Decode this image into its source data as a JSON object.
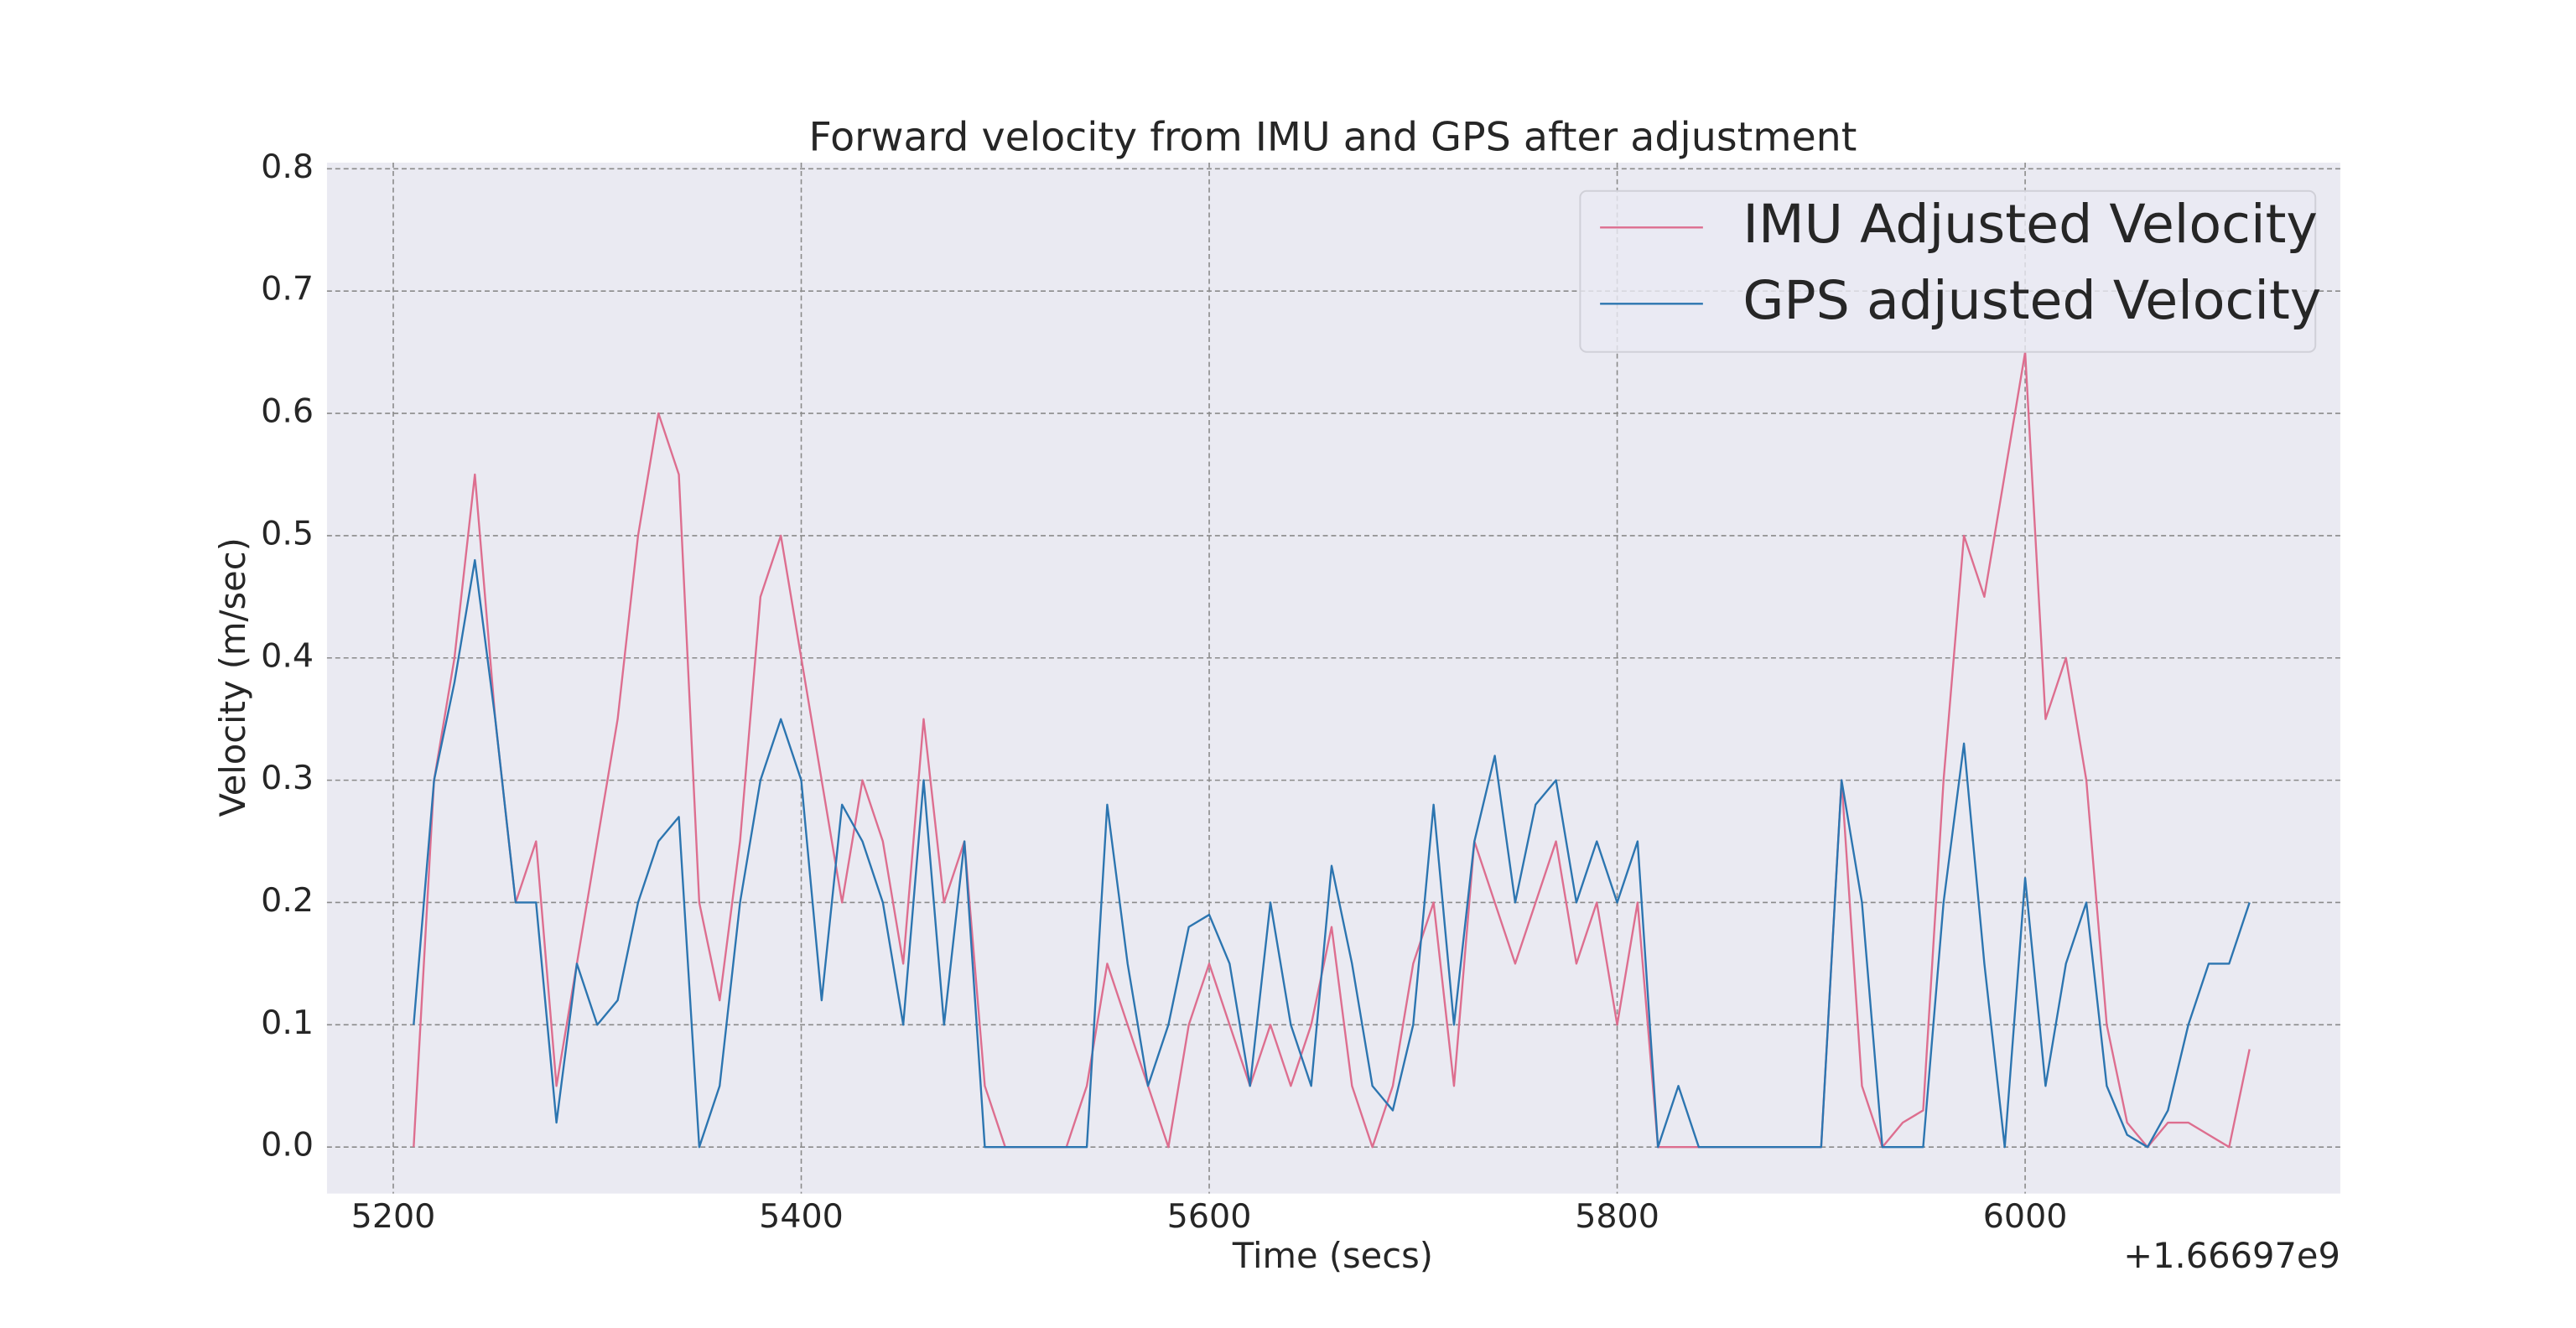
{
  "chart_data": {
    "type": "line",
    "title": "Forward velocity from IMU and GPS after adjustment",
    "xlabel": "Time (secs)",
    "ylabel": "Velocity (m/sec)",
    "x_offset_label": "+1.66697e9",
    "x": [
      5210,
      5220,
      5230,
      5240,
      5250,
      5260,
      5270,
      5280,
      5290,
      5300,
      5310,
      5320,
      5330,
      5340,
      5350,
      5360,
      5370,
      5380,
      5390,
      5400,
      5410,
      5420,
      5430,
      5440,
      5450,
      5460,
      5470,
      5480,
      5490,
      5500,
      5510,
      5520,
      5530,
      5540,
      5550,
      5560,
      5570,
      5580,
      5590,
      5600,
      5610,
      5620,
      5630,
      5640,
      5650,
      5660,
      5670,
      5680,
      5690,
      5700,
      5710,
      5720,
      5730,
      5740,
      5750,
      5760,
      5770,
      5780,
      5790,
      5800,
      5810,
      5820,
      5830,
      5840,
      5850,
      5860,
      5870,
      5880,
      5890,
      5900,
      5910,
      5920,
      5930,
      5940,
      5950,
      5960,
      5970,
      5980,
      5990,
      6000,
      6010,
      6020,
      6030,
      6040,
      6050,
      6060,
      6070,
      6080,
      6090,
      6100,
      6110
    ],
    "series": [
      {
        "name": "IMU Adjusted Velocity",
        "color": "#dd6e8f",
        "values": [
          0.0,
          0.3,
          0.4,
          0.55,
          0.35,
          0.2,
          0.25,
          0.05,
          0.15,
          0.25,
          0.35,
          0.5,
          0.6,
          0.55,
          0.2,
          0.12,
          0.25,
          0.45,
          0.5,
          0.4,
          0.3,
          0.2,
          0.3,
          0.25,
          0.15,
          0.35,
          0.2,
          0.25,
          0.05,
          0.0,
          0.0,
          0.0,
          0.0,
          0.05,
          0.15,
          0.1,
          0.05,
          0.0,
          0.1,
          0.15,
          0.1,
          0.05,
          0.1,
          0.05,
          0.1,
          0.18,
          0.05,
          0.0,
          0.05,
          0.15,
          0.2,
          0.05,
          0.25,
          0.2,
          0.15,
          0.2,
          0.25,
          0.15,
          0.2,
          0.1,
          0.2,
          0.0,
          0.0,
          0.0,
          0.0,
          0.0,
          0.0,
          0.0,
          0.0,
          0.0,
          0.3,
          0.05,
          0.0,
          0.02,
          0.03,
          0.3,
          0.5,
          0.45,
          0.55,
          0.65,
          0.35,
          0.4,
          0.3,
          0.1,
          0.02,
          0.0,
          0.02,
          0.02,
          0.01,
          0.0,
          0.08
        ]
      },
      {
        "name": "GPS adjusted Velocity",
        "color": "#2c75b0",
        "values": [
          0.1,
          0.3,
          0.38,
          0.48,
          0.35,
          0.2,
          0.2,
          0.02,
          0.15,
          0.1,
          0.12,
          0.2,
          0.25,
          0.27,
          0.0,
          0.05,
          0.2,
          0.3,
          0.35,
          0.3,
          0.12,
          0.28,
          0.25,
          0.2,
          0.1,
          0.3,
          0.1,
          0.25,
          0.0,
          0.0,
          0.0,
          0.0,
          0.0,
          0.0,
          0.28,
          0.15,
          0.05,
          0.1,
          0.18,
          0.19,
          0.15,
          0.05,
          0.2,
          0.1,
          0.05,
          0.23,
          0.15,
          0.05,
          0.03,
          0.1,
          0.28,
          0.1,
          0.25,
          0.32,
          0.2,
          0.28,
          0.3,
          0.2,
          0.25,
          0.2,
          0.25,
          0.0,
          0.05,
          0.0,
          0.0,
          0.0,
          0.0,
          0.0,
          0.0,
          0.0,
          0.3,
          0.2,
          0.0,
          0.0,
          0.0,
          0.2,
          0.33,
          0.15,
          0.0,
          0.22,
          0.05,
          0.15,
          0.2,
          0.05,
          0.01,
          0.0,
          0.03,
          0.1,
          0.15,
          0.15,
          0.2
        ]
      }
    ],
    "xlim": [
      5167.5,
      6154.5
    ],
    "ylim": [
      -0.038,
      0.805
    ],
    "xticks": [
      5200,
      5400,
      5600,
      5800,
      6000
    ],
    "yticks": [
      {
        "value": 0,
        "label": "0.0"
      },
      0.1,
      0.2,
      0.3,
      0.4,
      0.5,
      0.6,
      0.7,
      0.8
    ],
    "grid": true,
    "legend": "upper right"
  }
}
